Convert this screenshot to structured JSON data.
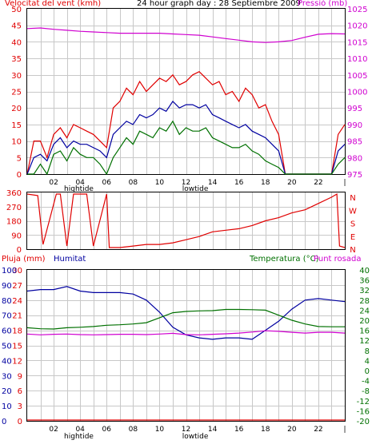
{
  "colors": {
    "red": "#e00000",
    "magenta": "#d000d0",
    "blue": "#0000a0",
    "green": "#007000",
    "grid": "#c8c8c8"
  },
  "top_panel": {
    "title_left": "Velocitat del vent (kmh)",
    "title_center": "24 hour graph day : 28 Septiembre 2009",
    "title_right": "Pressió (mb)"
  },
  "mid_panel": {
    "direction_labels": [
      "N",
      "W",
      "S",
      "E",
      "N"
    ]
  },
  "bottom_panel": {
    "title_rain": "Pluja (mm)",
    "title_humidity": "Humitat",
    "title_temp": "Temperatura (°C)",
    "title_dew": "Punt rosada"
  },
  "tide_labels": {
    "high": "hightide",
    "low": "lowtide"
  },
  "chart_data": [
    {
      "type": "line",
      "title": "24 hour graph day : 28 Septiembre 2009",
      "x_ticks": [
        "02",
        "04",
        "06",
        "08",
        "10",
        "12",
        "14",
        "16",
        "18",
        "20",
        "22",
        "|"
      ],
      "y_left_label": "Velocitat del vent (kmh)",
      "y_left_ticks": [
        0,
        5,
        10,
        15,
        20,
        25,
        30,
        35,
        40,
        45,
        50
      ],
      "y_left_lim": [
        0,
        50
      ],
      "y_right_label": "Pressió (mb)",
      "y_right_ticks": [
        975,
        980,
        985,
        990,
        995,
        1000,
        1005,
        1010,
        1015,
        1020,
        1025
      ],
      "y_right_lim": [
        975,
        1025
      ],
      "x_lim": [
        0,
        24
      ],
      "grid": true,
      "series": [
        {
          "name": "Pressió (mb)",
          "color": "#d000d0",
          "axis": "right",
          "x": [
            0,
            1,
            2,
            3,
            4,
            5,
            6,
            7,
            8,
            9,
            10,
            11,
            12,
            13,
            14,
            15,
            16,
            17,
            18,
            19,
            20,
            21,
            22,
            23,
            24
          ],
          "values": [
            1019,
            1019.2,
            1018.8,
            1018.5,
            1018.2,
            1018,
            1017.8,
            1017.6,
            1017.6,
            1017.6,
            1017.6,
            1017.4,
            1017.2,
            1017,
            1016.5,
            1016,
            1015.5,
            1015,
            1014.8,
            1015,
            1015.4,
            1016.4,
            1017.3,
            1017.5,
            1017.4
          ]
        },
        {
          "name": "",
          "color": "#e00000",
          "axis": "left",
          "x": [
            0,
            0.5,
            1,
            1.5,
            2,
            2.5,
            3,
            3.5,
            4,
            4.5,
            5,
            5.5,
            6,
            6.5,
            7,
            7.5,
            8,
            8.5,
            9,
            9.5,
            10,
            10.5,
            11,
            11.5,
            12,
            12.5,
            13,
            13.5,
            14,
            14.5,
            15,
            15.5,
            16,
            16.5,
            17,
            17.5,
            18,
            18.5,
            19,
            19.5,
            20,
            20.5,
            21,
            21.5,
            22,
            22.5,
            23,
            23.5,
            24
          ],
          "values": [
            0,
            10,
            10,
            5,
            12,
            14,
            11,
            15,
            14,
            13,
            12,
            10,
            8,
            20,
            22,
            26,
            24,
            28,
            25,
            27,
            29,
            28,
            30,
            27,
            28,
            30,
            31,
            29,
            27,
            28,
            24,
            25,
            22,
            26,
            24,
            20,
            21,
            16,
            12,
            0,
            0,
            0,
            0,
            0,
            0,
            0,
            0,
            12,
            15
          ]
        },
        {
          "name": "",
          "color": "#0000a0",
          "axis": "left",
          "x": [
            0,
            0.5,
            1,
            1.5,
            2,
            2.5,
            3,
            3.5,
            4,
            4.5,
            5,
            5.5,
            6,
            6.5,
            7,
            7.5,
            8,
            8.5,
            9,
            9.5,
            10,
            10.5,
            11,
            11.5,
            12,
            12.5,
            13,
            13.5,
            14,
            14.5,
            15,
            15.5,
            16,
            16.5,
            17,
            17.5,
            18,
            18.5,
            19,
            19.5,
            20,
            20.5,
            21,
            21.5,
            22,
            22.5,
            23,
            23.5,
            24
          ],
          "values": [
            0,
            5,
            6,
            4,
            9,
            11,
            8,
            10,
            9,
            9,
            8,
            7,
            5,
            12,
            14,
            16,
            15,
            18,
            17,
            18,
            20,
            19,
            22,
            20,
            21,
            21,
            20,
            21,
            18,
            17,
            16,
            15,
            14,
            15,
            13,
            12,
            11,
            9,
            7,
            0,
            0,
            0,
            0,
            0,
            0,
            0,
            0,
            7,
            9
          ]
        },
        {
          "name": "",
          "color": "#007000",
          "axis": "left",
          "x": [
            0,
            0.5,
            1,
            1.5,
            2,
            2.5,
            3,
            3.5,
            4,
            4.5,
            5,
            5.5,
            6,
            6.5,
            7,
            7.5,
            8,
            8.5,
            9,
            9.5,
            10,
            10.5,
            11,
            11.5,
            12,
            12.5,
            13,
            13.5,
            14,
            14.5,
            15,
            15.5,
            16,
            16.5,
            17,
            17.5,
            18,
            18.5,
            19,
            19.5,
            20,
            20.5,
            21,
            21.5,
            22,
            22.5,
            23,
            23.5,
            24
          ],
          "values": [
            0,
            0,
            3,
            0,
            6,
            7,
            4,
            8,
            6,
            5,
            5,
            3,
            0,
            5,
            8,
            11,
            9,
            13,
            12,
            11,
            14,
            13,
            16,
            12,
            14,
            13,
            13,
            14,
            11,
            10,
            9,
            8,
            8,
            9,
            7,
            6,
            4,
            3,
            2,
            0,
            0,
            0,
            0,
            0,
            0,
            0,
            0,
            3,
            5
          ]
        }
      ]
    },
    {
      "type": "line",
      "title": "",
      "x_lim": [
        0,
        24
      ],
      "y_left_ticks": [
        0,
        90,
        180,
        270,
        360
      ],
      "y_left_lim": [
        0,
        360
      ],
      "y_right_labels": [
        "N",
        "W",
        "S",
        "E",
        "N"
      ],
      "grid": true,
      "series": [
        {
          "name": "",
          "color": "#e00000",
          "x": [
            0,
            0.8,
            1.2,
            2.2,
            2.5,
            3,
            3.5,
            4,
            4.5,
            5,
            6,
            6.2,
            7,
            8,
            9,
            10,
            11,
            12,
            13,
            14,
            15,
            16,
            17,
            18,
            19,
            20,
            21,
            22,
            23,
            23.4,
            23.6,
            24
          ],
          "values": [
            350,
            340,
            30,
            350,
            350,
            20,
            350,
            350,
            350,
            20,
            350,
            10,
            10,
            20,
            30,
            30,
            40,
            60,
            80,
            110,
            120,
            130,
            150,
            180,
            200,
            230,
            250,
            290,
            330,
            350,
            20,
            10
          ]
        }
      ]
    },
    {
      "type": "line",
      "title": "",
      "x_lim": [
        0,
        24
      ],
      "y_left_label": "Pluja (mm)",
      "y_left_ticks": [
        0,
        3,
        6,
        9,
        12,
        15,
        18,
        21,
        24,
        27,
        30
      ],
      "y_left2_label": "Humitat",
      "y_left2_ticks": [
        0,
        10,
        20,
        30,
        40,
        50,
        60,
        70,
        80,
        90,
        100
      ],
      "y_right_label": "Temperatura (°C)",
      "y_right_ticks": [
        -20,
        -16,
        -12,
        -8,
        -4,
        0,
        4,
        8,
        12,
        16,
        20,
        24,
        28,
        32,
        36,
        40
      ],
      "y_right_lim": [
        -20,
        40
      ],
      "grid": true,
      "series": [
        {
          "name": "Humitat",
          "color": "#0000a0",
          "axis": "humidity",
          "x": [
            0,
            1,
            2,
            3,
            4,
            5,
            6,
            7,
            8,
            9,
            10,
            11,
            12,
            13,
            14,
            15,
            16,
            17,
            18,
            19,
            20,
            21,
            22,
            23,
            24
          ],
          "values": [
            86,
            87,
            87,
            89,
            86,
            85,
            85,
            85,
            84,
            80,
            72,
            62,
            57,
            55,
            54,
            55,
            55,
            54,
            60,
            66,
            74,
            80,
            81,
            80,
            79
          ]
        },
        {
          "name": "Temperatura (°C)",
          "color": "#007000",
          "axis": "right",
          "x": [
            0,
            1,
            2,
            3,
            4,
            5,
            6,
            7,
            8,
            9,
            10,
            11,
            12,
            13,
            14,
            15,
            16,
            17,
            18,
            19,
            20,
            21,
            22,
            23,
            24
          ],
          "values": [
            17,
            16.6,
            16.5,
            17,
            17.2,
            17.5,
            18,
            18.2,
            18.5,
            19,
            21,
            23,
            23.5,
            23.7,
            23.8,
            24.3,
            24.3,
            24.2,
            24,
            22,
            20,
            18.5,
            17.5,
            17.4,
            17.4
          ]
        },
        {
          "name": "Punt rosada",
          "color": "#d000d0",
          "axis": "right",
          "x": [
            0,
            1,
            2,
            3,
            4,
            5,
            6,
            7,
            8,
            9,
            10,
            11,
            12,
            13,
            14,
            15,
            16,
            17,
            18,
            19,
            20,
            21,
            22,
            23,
            24
          ],
          "values": [
            14.5,
            14.2,
            14.4,
            14.5,
            14.3,
            14.2,
            14.3,
            14.4,
            14.4,
            14.3,
            14.5,
            14.8,
            14.3,
            14.2,
            14.4,
            14.6,
            14.9,
            15.3,
            15.8,
            15.6,
            15.2,
            14.9,
            15.2,
            15.2,
            14.9
          ]
        },
        {
          "name": "Pluja (mm)",
          "color": "#e00000",
          "axis": "rain",
          "x": [
            0,
            24
          ],
          "values": [
            0,
            0
          ]
        }
      ]
    }
  ]
}
